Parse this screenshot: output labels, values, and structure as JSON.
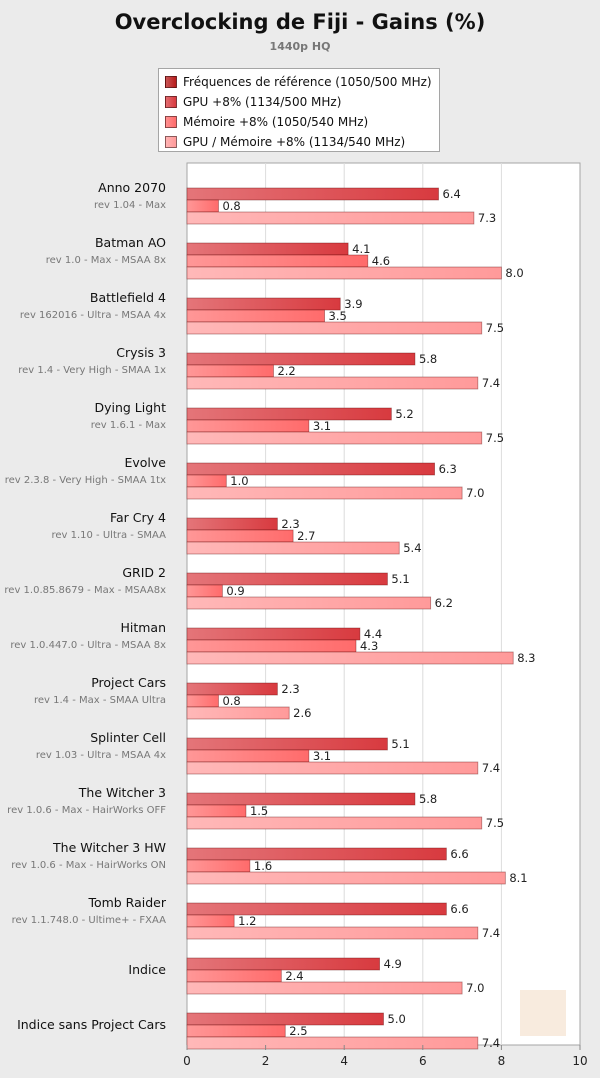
{
  "chart_data": {
    "type": "bar",
    "orientation": "horizontal",
    "title": "Overclocking de Fiji - Gains (%)",
    "subtitle": "1440p HQ",
    "xlim": [
      0,
      10
    ],
    "x_ticks": [
      "0",
      "2",
      "4",
      "6",
      "8",
      "10"
    ],
    "grid": "vertical",
    "legend_position": "top",
    "categories": [
      {
        "name": "Anno 2070",
        "detail": "rev 1.04 - Max"
      },
      {
        "name": "Batman AO",
        "detail": "rev 1.0 - Max - MSAA 8x"
      },
      {
        "name": "Battlefield 4",
        "detail": "rev 162016 - Ultra - MSAA 4x"
      },
      {
        "name": "Crysis 3",
        "detail": "rev 1.4 - Very High - SMAA 1x"
      },
      {
        "name": "Dying Light",
        "detail": "rev 1.6.1 - Max"
      },
      {
        "name": "Evolve",
        "detail": "rev 2.3.8 - Very High - SMAA 1tx"
      },
      {
        "name": "Far Cry 4",
        "detail": "rev 1.10 - Ultra - SMAA"
      },
      {
        "name": "GRID 2",
        "detail": "rev 1.0.85.8679 - Max - MSAA8x"
      },
      {
        "name": "Hitman",
        "detail": "rev 1.0.447.0 - Ultra - MSAA 8x"
      },
      {
        "name": "Project Cars",
        "detail": "rev 1.4 - Max - SMAA Ultra"
      },
      {
        "name": "Splinter Cell",
        "detail": "rev 1.03 - Ultra - MSAA 4x"
      },
      {
        "name": "The Witcher 3",
        "detail": "rev 1.0.6 - Max - HairWorks OFF"
      },
      {
        "name": "The Witcher 3 HW",
        "detail": "rev 1.0.6 - Max - HairWorks ON"
      },
      {
        "name": "Tomb Raider",
        "detail": "rev 1.1.748.0 - Ultime+ - FXAA"
      },
      {
        "name": "Indice",
        "detail": ""
      },
      {
        "name": "Indice sans Project Cars",
        "detail": ""
      }
    ],
    "series": [
      {
        "name": "Fréquences de référence (1050/500 MHz)",
        "color": "#b71c1c",
        "values": [
          null,
          null,
          null,
          null,
          null,
          null,
          null,
          null,
          null,
          null,
          null,
          null,
          null,
          null,
          null,
          null
        ]
      },
      {
        "name": "GPU +8% (1134/500 MHz)",
        "color": "#d83a3f",
        "values": [
          6.4,
          4.1,
          3.9,
          5.8,
          5.2,
          6.3,
          2.3,
          5.1,
          4.4,
          2.3,
          5.1,
          5.8,
          6.6,
          6.6,
          4.9,
          5.0
        ]
      },
      {
        "name": "Mémoire +8% (1050/540 MHz)",
        "color": "#ff6b6b",
        "values": [
          0.8,
          4.6,
          3.5,
          2.2,
          3.1,
          1.0,
          2.7,
          0.9,
          4.3,
          0.8,
          3.1,
          1.5,
          1.6,
          1.2,
          2.4,
          2.5
        ]
      },
      {
        "name": "GPU / Mémoire +8% (1134/540 MHz)",
        "color": "#ff9a9a",
        "values": [
          7.3,
          8.0,
          7.5,
          7.4,
          7.5,
          7.0,
          5.4,
          6.2,
          8.3,
          2.6,
          7.4,
          7.5,
          8.1,
          7.4,
          7.0,
          7.4
        ]
      }
    ]
  }
}
